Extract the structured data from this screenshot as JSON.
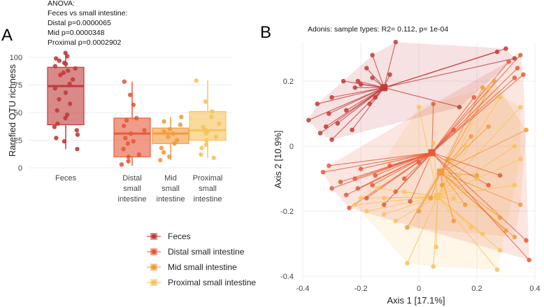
{
  "colors": {
    "feces": "#c23b3b",
    "distal": "#e65a3a",
    "mid": "#f39a3c",
    "proximal": "#f7c35c"
  },
  "panel_a_letter": "A",
  "panel_b_letter": "B",
  "chart_data": [
    {
      "type": "box",
      "panel": "A",
      "ylabel": "Rarefied OTU richness",
      "ylim": [
        0,
        110
      ],
      "yticks": [
        0,
        25,
        50,
        75,
        100
      ],
      "annotation": [
        "ANOVA:",
        "Feces vs small intestine:",
        "Distal  p=0.0000065",
        "Mid p=0.0000348",
        "Proximal p=0.0002902"
      ],
      "groups": [
        {
          "key": "feces",
          "label": [
            "Feces"
          ],
          "q1": 39,
          "median": 74,
          "q3": 91,
          "min": 17,
          "max": 104,
          "points": [
            104,
            101,
            99,
            97,
            95,
            94,
            92,
            90,
            88,
            86,
            84,
            80,
            76,
            72,
            68,
            62,
            58,
            52,
            48,
            45,
            40,
            37,
            34,
            30,
            27,
            24,
            17
          ]
        },
        {
          "key": "distal",
          "label": [
            "Distal",
            "small",
            "intestine"
          ],
          "q1": 10,
          "median": 31,
          "q3": 45,
          "min": 2,
          "max": 78,
          "points": [
            78,
            66,
            57,
            45,
            43,
            38,
            34,
            31,
            27,
            24,
            22,
            17,
            12,
            10,
            6,
            3
          ]
        },
        {
          "key": "mid",
          "label": [
            "Mid",
            "small",
            "intestine"
          ],
          "q1": 22,
          "median": 31,
          "q3": 36,
          "min": 7,
          "max": 46,
          "points": [
            46,
            42,
            39,
            35,
            33,
            31,
            28,
            25,
            22,
            18,
            14,
            10,
            7
          ]
        },
        {
          "key": "proximal",
          "label": [
            "Proximal",
            "small",
            "intestine"
          ],
          "q1": 25,
          "median": 34,
          "q3": 51,
          "min": 9,
          "max": 79,
          "points": [
            79,
            60,
            51,
            46,
            40,
            37,
            34,
            33,
            31,
            28,
            25,
            21,
            18,
            12,
            9
          ]
        }
      ]
    },
    {
      "type": "scatter",
      "panel": "B",
      "title": "Adonis: sample types: R2= 0.112, p= 1e-04",
      "xlabel": "Axis 1 [17.1%]",
      "ylabel": "Axis 2 [10.9%]",
      "xlim": [
        -0.42,
        0.4
      ],
      "ylim": [
        -0.4,
        0.3
      ],
      "xticks": [
        -0.4,
        -0.2,
        0,
        0.2,
        0.4
      ],
      "yticks": [
        -0.4,
        -0.2,
        0,
        0.2
      ],
      "groups": [
        {
          "key": "feces",
          "centroid": [
            -0.12,
            0.18
          ],
          "points": [
            [
              -0.38,
              0.08
            ],
            [
              -0.35,
              0.13
            ],
            [
              -0.34,
              0.04
            ],
            [
              -0.32,
              0.06
            ],
            [
              -0.31,
              0.1
            ],
            [
              -0.3,
              0.02
            ],
            [
              -0.3,
              0.15
            ],
            [
              -0.28,
              0.07
            ],
            [
              -0.26,
              0.2
            ],
            [
              -0.25,
              0.11
            ],
            [
              -0.23,
              0.05
            ],
            [
              -0.22,
              0.18
            ],
            [
              -0.21,
              0.2
            ],
            [
              -0.2,
              0.19
            ],
            [
              -0.18,
              0.24
            ],
            [
              -0.17,
              0.13
            ],
            [
              -0.16,
              0.21
            ],
            [
              -0.16,
              0.28
            ],
            [
              -0.15,
              0.15
            ],
            [
              -0.1,
              0.22
            ],
            [
              -0.08,
              0.32
            ],
            [
              0.14,
              0.12
            ],
            [
              0.27,
              0.29
            ],
            [
              0.3,
              0.3
            ],
            [
              0.33,
              0.27
            ]
          ]
        },
        {
          "key": "distal",
          "centroid": [
            0.045,
            -0.02
          ],
          "points": [
            [
              -0.33,
              -0.08
            ],
            [
              -0.31,
              -0.06
            ],
            [
              -0.3,
              -0.13
            ],
            [
              -0.27,
              -0.11
            ],
            [
              -0.25,
              -0.15
            ],
            [
              -0.24,
              -0.19
            ],
            [
              -0.22,
              -0.1
            ],
            [
              -0.21,
              -0.13
            ],
            [
              -0.2,
              -0.07
            ],
            [
              -0.18,
              -0.16
            ],
            [
              -0.16,
              -0.12
            ],
            [
              -0.15,
              -0.09
            ],
            [
              -0.12,
              -0.18
            ],
            [
              -0.1,
              -0.06
            ],
            [
              -0.08,
              -0.14
            ],
            [
              -0.05,
              -0.1
            ],
            [
              -0.03,
              -0.17
            ],
            [
              0.0,
              -0.05
            ],
            [
              0.05,
              0.13
            ],
            [
              0.12,
              0.05
            ],
            [
              0.19,
              0.15
            ],
            [
              0.24,
              -0.12
            ],
            [
              0.28,
              -0.09
            ],
            [
              0.31,
              0.26
            ],
            [
              0.33,
              0.21
            ],
            [
              0.34,
              0.24
            ],
            [
              0.35,
              0.28
            ],
            [
              0.37,
              -0.29
            ],
            [
              0.38,
              -0.35
            ],
            [
              0.36,
              0.22
            ]
          ]
        },
        {
          "key": "mid",
          "centroid": [
            0.075,
            -0.08
          ],
          "points": [
            [
              -0.04,
              -0.25
            ],
            [
              0.0,
              -0.2
            ],
            [
              0.04,
              -0.16
            ],
            [
              0.08,
              -0.12
            ],
            [
              0.1,
              -0.04
            ],
            [
              0.12,
              -0.23
            ],
            [
              0.16,
              -0.18
            ],
            [
              0.18,
              0.03
            ],
            [
              0.2,
              -0.09
            ],
            [
              0.22,
              0.18
            ],
            [
              0.24,
              0.06
            ],
            [
              0.26,
              0.2
            ],
            [
              0.28,
              -0.22
            ],
            [
              0.3,
              -0.26
            ],
            [
              0.33,
              -0.28
            ],
            [
              0.35,
              -0.18
            ],
            [
              0.37,
              0.05
            ]
          ]
        },
        {
          "key": "proximal",
          "centroid": [
            0.065,
            -0.155
          ],
          "points": [
            [
              -0.22,
              -0.18
            ],
            [
              -0.18,
              -0.2
            ],
            [
              -0.12,
              -0.21
            ],
            [
              -0.08,
              -0.23
            ],
            [
              -0.12,
              -0.16
            ],
            [
              -0.05,
              -0.14
            ],
            [
              -0.14,
              -0.13
            ],
            [
              -0.2,
              -0.16
            ],
            [
              0.0,
              0.12
            ],
            [
              0.06,
              -0.31
            ],
            [
              0.05,
              0.01
            ],
            [
              0.12,
              -0.16
            ],
            [
              0.14,
              -0.09
            ],
            [
              0.16,
              0.0
            ],
            [
              0.18,
              -0.25
            ],
            [
              0.22,
              -0.27
            ],
            [
              0.24,
              0.18
            ],
            [
              0.26,
              -0.2
            ],
            [
              0.28,
              0.15
            ],
            [
              0.33,
              0.0
            ],
            [
              0.35,
              0.12
            ],
            [
              0.35,
              -0.04
            ],
            [
              0.33,
              -0.12
            ],
            [
              0.28,
              -0.32
            ],
            [
              0.27,
              -0.38
            ],
            [
              -0.04,
              -0.36
            ],
            [
              0.05,
              -0.37
            ],
            [
              0.2,
              -0.1
            ]
          ]
        }
      ]
    }
  ],
  "legend": [
    {
      "key": "feces",
      "label": "Feces"
    },
    {
      "key": "distal",
      "label": "Distal small intestine"
    },
    {
      "key": "mid",
      "label": "Mid small intestine"
    },
    {
      "key": "proximal",
      "label": "Proximal small intestine"
    }
  ]
}
